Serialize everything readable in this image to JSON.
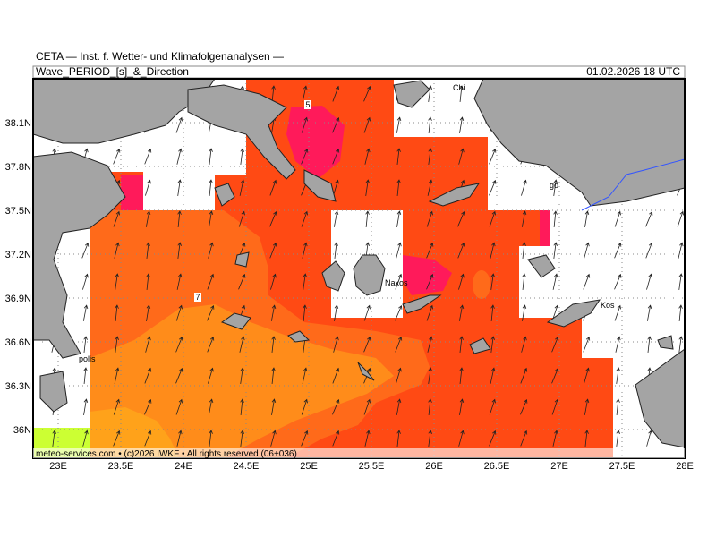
{
  "header": {
    "source": "CETA — Inst. f. Wetter- und Klimafolgenanalysen —",
    "title": "Wave_PERIOD_[s]_&_Direction",
    "time": "01.02.2026 18 UTC"
  },
  "map": {
    "lon_labels": [
      "23E",
      "23.5E",
      "24E",
      "24.5E",
      "25E",
      "25.5E",
      "26E",
      "26.5E",
      "27E",
      "27.5E",
      "28E"
    ],
    "lat_labels": [
      "38.1N",
      "37.8N",
      "37.5N",
      "37.2N",
      "36.9N",
      "36.6N",
      "36.3N",
      "36N"
    ],
    "places": [
      "Chi",
      "Naxos",
      "Kos",
      "polis",
      "go"
    ],
    "contour_labels": [
      "5",
      "7"
    ]
  },
  "footer": "meteo-services.com • (c)2026 IWKF • All rights reserved (06+036)"
}
